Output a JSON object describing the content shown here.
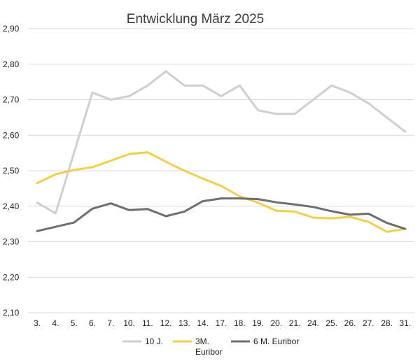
{
  "chart_data": {
    "type": "line",
    "title": "Entwicklung März 2025",
    "categories": [
      "3.",
      "4.",
      "5.",
      "6.",
      "7.",
      "10.",
      "11.",
      "12.",
      "13.",
      "14.",
      "17.",
      "18.",
      "19.",
      "20.",
      "21.",
      "24.",
      "25.",
      "26.",
      "27.",
      "28.",
      "31."
    ],
    "ylim": [
      2.1,
      2.9
    ],
    "ytick_labels": [
      "2,90",
      "2,80",
      "2,70",
      "2,60",
      "2,50",
      "2,40",
      "2,30",
      "2,20",
      "2,10"
    ],
    "grid": true,
    "legend_position": "bottom",
    "series": [
      {
        "name": "10 J.",
        "color": "#cfcfcf",
        "values": [
          2.41,
          2.38,
          2.55,
          2.72,
          2.7,
          2.71,
          2.74,
          2.78,
          2.74,
          2.74,
          2.71,
          2.74,
          2.67,
          2.66,
          2.66,
          2.7,
          2.74,
          2.72,
          2.69,
          2.65,
          2.61
        ]
      },
      {
        "name": "3M. Euribor",
        "label_lines": [
          "3M.",
          "Euribor"
        ],
        "color": "#f2cf4a",
        "values": [
          2.465,
          2.49,
          2.502,
          2.51,
          2.528,
          2.547,
          2.552,
          2.525,
          2.5,
          2.478,
          2.457,
          2.428,
          2.41,
          2.387,
          2.385,
          2.368,
          2.366,
          2.37,
          2.356,
          2.328,
          2.336
        ]
      },
      {
        "name": "6 M. Euribor",
        "color": "#6e6e6e",
        "values": [
          2.33,
          2.342,
          2.354,
          2.393,
          2.408,
          2.389,
          2.392,
          2.372,
          2.385,
          2.414,
          2.422,
          2.422,
          2.42,
          2.411,
          2.405,
          2.398,
          2.386,
          2.376,
          2.379,
          2.353,
          2.336
        ]
      }
    ]
  }
}
